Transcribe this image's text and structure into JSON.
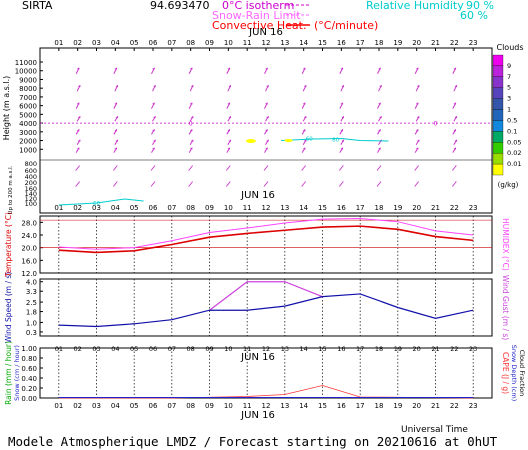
{
  "header": {
    "station": "SIRTA",
    "coords": "94.693470",
    "legend_left": [
      {
        "label": "0°C isotherm",
        "color": "#cc00cc"
      },
      {
        "label": "Snow-Rain Limit",
        "color": "#ff66ff"
      },
      {
        "label": "Convective Heat.",
        "color": "#ff0000",
        "unit": "(°C/minute)"
      }
    ],
    "legend_right": {
      "label": "Relative Humidity",
      "values": [
        "90 %",
        "60 %"
      ],
      "color": "#00cccc"
    }
  },
  "footer": {
    "text": "Modele Atmospherique LMDZ / Forecast starting on 20210616 at 0hUT",
    "utime_label": "Universal Time"
  },
  "colors": {
    "wind": "#cc33cc",
    "temperature": "#dd0000",
    "humidex": "#ff44ff",
    "wind_speed": "#1111aa",
    "wind_gust": "#cc44dd",
    "rain": "#00aa00",
    "snow": "#2222cc",
    "cape": "#ff3333",
    "rh": "#00cccc"
  },
  "chart_data": [
    {
      "type": "scatter",
      "name_on_image": "Height (m a.s.l.)",
      "date_label": "JUN 16",
      "x_hours": [
        "01",
        "02",
        "03",
        "04",
        "05",
        "06",
        "07",
        "08",
        "09",
        "10",
        "11",
        "12",
        "13",
        "14",
        "15",
        "16",
        "17",
        "18",
        "19",
        "20",
        "21",
        "22",
        "23"
      ],
      "ylabel": "Height (m a.s.l.)",
      "yticks": [
        11000,
        10000,
        9000,
        8000,
        7000,
        6000,
        5000,
        4000,
        3000,
        2000,
        1000
      ],
      "low_yticks": [
        800,
        600,
        400,
        200,
        160,
        140,
        120,
        100
      ],
      "low_ylabel": "Up to 200 m a.s.l.",
      "zero_isotherm_m": 4000,
      "zero_isotherm_label": "0",
      "clouds_colorbar": {
        "title": "Clouds",
        "unit": "(g/kg)",
        "ticks": [
          "9",
          "7",
          "5",
          "3",
          "1",
          "0.5",
          "0.1",
          "0.05",
          "0.02",
          "0.01"
        ],
        "colors": [
          "#ee00ee",
          "#bb22dd",
          "#8833cc",
          "#5544bb",
          "#3355aa",
          "#2266bb",
          "#1188dd",
          "#00aa66",
          "#33cc00",
          "#99dd00",
          "#ffff00"
        ]
      },
      "rh_label": "60",
      "wind_direction": "from south-southwest"
    },
    {
      "type": "line",
      "ylabel": "Temperature (°C)",
      "ylabel_right": "HUMIDEX (°C)",
      "yticks": [
        28.0,
        24.0,
        20.0,
        16.0,
        12.0
      ],
      "ylim": [
        12,
        30
      ],
      "hours": [
        1,
        3,
        5,
        7,
        9,
        11,
        13,
        15,
        17,
        19,
        21,
        23
      ],
      "series": [
        {
          "name": "Temperature",
          "values": [
            19.2,
            18.5,
            19.0,
            21.0,
            23.3,
            24.5,
            25.5,
            26.5,
            26.8,
            25.8,
            23.5,
            22.3
          ]
        },
        {
          "name": "HUMIDEX",
          "values": [
            20.2,
            19.5,
            20.0,
            22.2,
            24.8,
            26.2,
            27.8,
            29.0,
            29.2,
            28.2,
            25.3,
            24.0
          ]
        }
      ]
    },
    {
      "type": "line",
      "ylabel": "Wind Speed (m / s)",
      "ylabel_right": "Wind Gust (m / s)",
      "yticks": [
        4.0,
        3.3,
        2.5,
        1.8,
        1.0,
        0.3
      ],
      "ylim": [
        0,
        4.2
      ],
      "hours": [
        1,
        3,
        5,
        7,
        9,
        11,
        13,
        15,
        17,
        19,
        21,
        23
      ],
      "series": [
        {
          "name": "Wind Speed",
          "values": [
            0.8,
            0.7,
            0.9,
            1.2,
            1.9,
            1.9,
            2.2,
            2.9,
            3.1,
            2.1,
            1.3,
            1.9
          ]
        },
        {
          "name": "Wind Gust",
          "hours": [
            9,
            11,
            13,
            15
          ],
          "values": [
            1.9,
            4.0,
            4.0,
            2.9
          ]
        }
      ]
    },
    {
      "type": "line",
      "date_label": "JUN 16",
      "x_hours": [
        "01",
        "02",
        "03",
        "04",
        "05",
        "06",
        "07",
        "08",
        "09",
        "10",
        "11",
        "12",
        "13",
        "14",
        "15",
        "16",
        "17",
        "18",
        "19",
        "20",
        "21",
        "22",
        "23"
      ],
      "ylabel": "Rain (mm / hour)",
      "ylabel2": "Snow (cm / hour)",
      "ylabel_right": "CAPE (J / g)",
      "ylabel_right2": "Snow Depth (cm)",
      "ylabel_right3": "Cloud Fraction",
      "yticks": [
        "1.00",
        "0.80",
        "0.60",
        "0.40",
        "0.20",
        "0.00"
      ],
      "ylim": [
        0,
        1
      ],
      "series": [
        {
          "name": "CAPE",
          "hours": [
            1,
            7,
            11,
            13,
            15,
            17,
            23
          ],
          "values": [
            0,
            0,
            0.03,
            0.07,
            0.25,
            0.02,
            0
          ]
        },
        {
          "name": "Rain",
          "hours": [
            1,
            23
          ],
          "values": [
            0.01,
            0.01
          ]
        }
      ]
    }
  ]
}
